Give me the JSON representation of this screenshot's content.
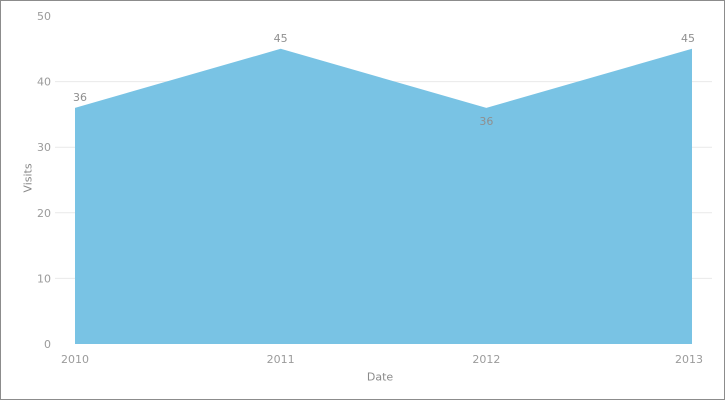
{
  "figure": {
    "background": "#FFFFFF",
    "border_color": "#8C8C8C"
  },
  "chart_data": {
    "type": "area",
    "title": "",
    "categories": [
      "2010",
      "2011",
      "2012",
      "2013"
    ],
    "series": [
      {
        "name": "Visits",
        "values": [
          36,
          45,
          36,
          45
        ]
      }
    ],
    "xlabel": "Date",
    "ylabel": "Visits",
    "ylim": [
      0,
      50
    ],
    "yticks": [
      0,
      10,
      20,
      30,
      40,
      50
    ],
    "grid": "horizontal",
    "gridline_values": [
      10,
      20,
      30,
      40
    ],
    "legend": "none",
    "data_labels": [
      "36",
      "45",
      "36",
      "45"
    ],
    "data_label_positions": [
      "above",
      "above",
      "below",
      "above"
    ],
    "colors": {
      "area_fill": "#79C3E4",
      "gridline": "#E9E9E9",
      "tick_text": "#9B9B9B",
      "data_label_text": "#8F8F8F",
      "axis_title_text": "#8A8A8A"
    }
  }
}
